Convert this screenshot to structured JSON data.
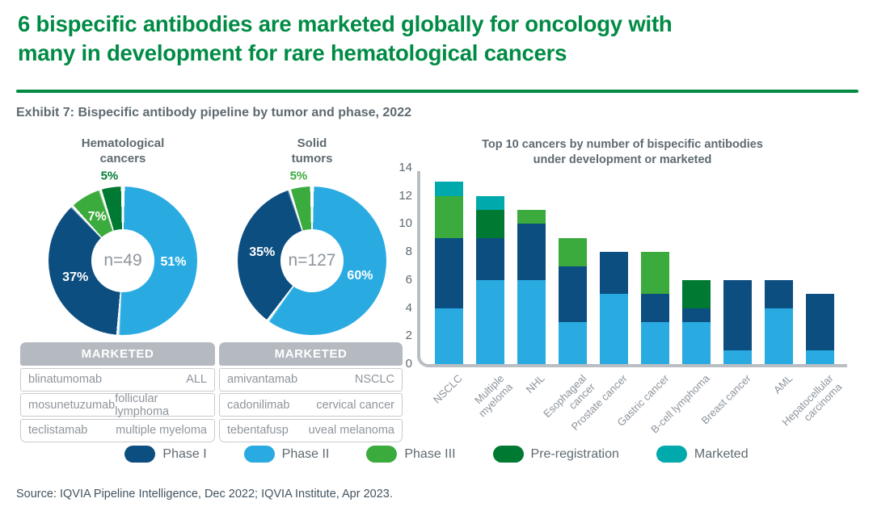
{
  "header": {
    "title": "6 bispecific antibodies are marketed globally for oncology with\nmany in development for rare hematological cancers",
    "exhibit": "Exhibit 7: Bispecific antibody pipeline by tumor and phase, 2022"
  },
  "source": "Source: IQVIA Pipeline Intelligence, Dec 2022; IQVIA Institute, Apr 2023.",
  "colors": {
    "title_green": "#008b45",
    "phase1": "#0d4e81",
    "phase2": "#29abe2",
    "phase3": "#3aab3c",
    "pre_registration": "#007a33",
    "marketed": "#00a9ac",
    "heading_gray": "#5e6a71",
    "muted_gray": "#8e959c",
    "table_header_bg": "#b4bac0",
    "axis_gray": "#b9bec3"
  },
  "legend": {
    "items": [
      {
        "label": "Phase I",
        "color_key": "phase1"
      },
      {
        "label": "Phase II",
        "color_key": "phase2"
      },
      {
        "label": "Phase III",
        "color_key": "phase3"
      },
      {
        "label": "Pre-registration",
        "color_key": "pre_registration"
      },
      {
        "label": "Marketed",
        "color_key": "marketed"
      }
    ]
  },
  "marketed_tables": [
    {
      "header": "MARKETED",
      "rows": [
        [
          "blinatumomab",
          "ALL"
        ],
        [
          "mosunetuzumab",
          "follicular lymphoma"
        ],
        [
          "teclistamab",
          "multiple myeloma"
        ]
      ]
    },
    {
      "header": "MARKETED",
      "rows": [
        [
          "amivantamab",
          "NSCLC"
        ],
        [
          "cadonilimab",
          "cervical cancer"
        ],
        [
          "tebentafusp",
          "uveal melanoma"
        ]
      ]
    }
  ],
  "chart_data": [
    {
      "type": "pie",
      "subtype": "donut",
      "title": "Hematological\ncancers",
      "center_label": "n=49",
      "slices": [
        {
          "label": "Phase II",
          "pct": 51,
          "color_key": "phase2"
        },
        {
          "label": "Phase I",
          "pct": 37,
          "color_key": "phase1"
        },
        {
          "label": "Phase III",
          "pct": 7,
          "color_key": "phase3"
        },
        {
          "label": "Pre-registration",
          "pct": 5,
          "color_key": "pre_registration"
        }
      ]
    },
    {
      "type": "pie",
      "subtype": "donut",
      "title": "Solid\ntumors",
      "center_label": "n=127",
      "slices": [
        {
          "label": "Phase II",
          "pct": 60,
          "color_key": "phase2"
        },
        {
          "label": "Phase I",
          "pct": 35,
          "color_key": "phase1"
        },
        {
          "label": "Phase III",
          "pct": 5,
          "color_key": "phase3"
        }
      ]
    },
    {
      "type": "bar",
      "stacked": true,
      "title": "Top 10 cancers by number of bispecific antibodies\nunder development or marketed",
      "ylim": [
        0,
        14
      ],
      "yticks": [
        0,
        2,
        4,
        6,
        8,
        10,
        12,
        14
      ],
      "grid": false,
      "legend_position": "bottom",
      "categories": [
        "NSCLC",
        "Multiple\nmyeloma",
        "NHL",
        "Esophageal\ncancer",
        "Prostate cancer",
        "Gastric cancer",
        "B-cell lymphoma",
        "Breast cancer",
        "AML",
        "Hepatocellular\ncarcinoma"
      ],
      "series": [
        {
          "name": "Phase II",
          "color_key": "phase2",
          "values": [
            4,
            6,
            6,
            3,
            5,
            3,
            3,
            1,
            4,
            1
          ]
        },
        {
          "name": "Phase I",
          "color_key": "phase1",
          "values": [
            5,
            3,
            4,
            4,
            3,
            2,
            1,
            5,
            2,
            4
          ]
        },
        {
          "name": "Phase III",
          "color_key": "phase3",
          "values": [
            3,
            0,
            1,
            2,
            0,
            3,
            0,
            0,
            0,
            0
          ]
        },
        {
          "name": "Pre-registration",
          "color_key": "pre_registration",
          "values": [
            0,
            2,
            0,
            0,
            0,
            0,
            2,
            0,
            0,
            0
          ]
        },
        {
          "name": "Marketed",
          "color_key": "marketed",
          "values": [
            1,
            1,
            0,
            0,
            0,
            0,
            0,
            0,
            0,
            0
          ]
        }
      ],
      "totals": [
        13,
        12,
        11,
        9,
        8,
        8,
        6,
        6,
        6,
        5
      ]
    }
  ]
}
